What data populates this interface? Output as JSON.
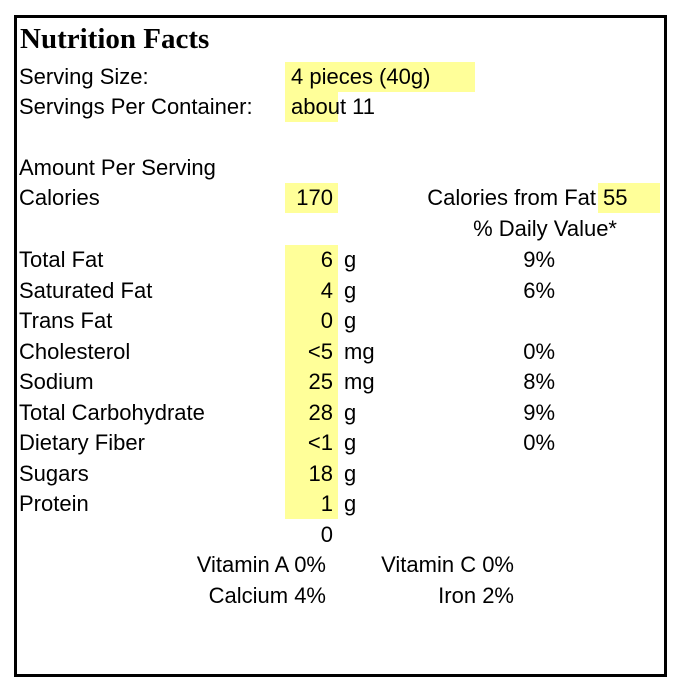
{
  "header": {
    "title": "Nutrition Facts"
  },
  "serving": {
    "size_label": "Serving Size:",
    "size_value": "4 pieces (40g)",
    "per_container_label": "Servings Per Container:",
    "per_container_value": "about 11"
  },
  "amount": {
    "heading": "Amount Per Serving",
    "calories_label": "Calories",
    "calories_value": "170",
    "fat_calories_label": "Calories from Fat",
    "fat_calories_value": "55",
    "daily_value_heading": "% Daily Value*"
  },
  "nutrients": [
    {
      "name": "Total Fat",
      "amount": "6",
      "unit": "g",
      "dv": "9%"
    },
    {
      "name": "Saturated Fat",
      "amount": "4",
      "unit": "g",
      "dv": "6%"
    },
    {
      "name": "Trans Fat",
      "amount": "0",
      "unit": "g",
      "dv": null
    },
    {
      "name": "Cholesterol",
      "amount": "<5",
      "unit": "mg",
      "dv": "0%"
    },
    {
      "name": "Sodium",
      "amount": "25",
      "unit": "mg",
      "dv": "8%"
    },
    {
      "name": "Total Carbohydrate",
      "amount": "28",
      "unit": "g",
      "dv": "9%"
    },
    {
      "name": "Dietary Fiber",
      "amount": "<1",
      "unit": "g",
      "dv": "0%"
    },
    {
      "name": "Sugars",
      "amount": "18",
      "unit": "g",
      "dv": null
    },
    {
      "name": "Protein",
      "amount": "1",
      "unit": "g",
      "dv": null
    }
  ],
  "stray_value": "0",
  "vitamins": [
    [
      "Vitamin A 0%",
      "Vitamin C 0%"
    ],
    [
      "Calcium 4%",
      "Iron 2%"
    ]
  ]
}
